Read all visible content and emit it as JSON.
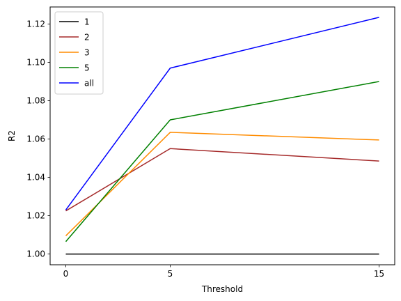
{
  "chart_data": {
    "type": "line",
    "title": "",
    "xlabel": "Threshold",
    "ylabel": "R2",
    "x": [
      0,
      5,
      15
    ],
    "x_ticks": [
      0,
      5,
      15
    ],
    "x_tick_labels": [
      "0",
      "5",
      "15"
    ],
    "y_ticks": [
      1.0,
      1.02,
      1.04,
      1.06,
      1.08,
      1.1,
      1.12
    ],
    "y_tick_labels": [
      "1.00",
      "1.02",
      "1.04",
      "1.06",
      "1.08",
      "1.10",
      "1.12"
    ],
    "xlim": [
      -0.75,
      15.75
    ],
    "ylim": [
      0.9944,
      1.1289
    ],
    "grid": false,
    "legend_position": "top-left",
    "series": [
      {
        "name": "1",
        "color": "#000000",
        "values": [
          1.0,
          1.0,
          1.0
        ]
      },
      {
        "name": "2",
        "color": "#a52a2a",
        "values": [
          1.0225,
          1.055,
          1.0485
        ]
      },
      {
        "name": "3",
        "color": "#ff8c00",
        "values": [
          1.0095,
          1.0635,
          1.0595
        ]
      },
      {
        "name": "5",
        "color": "#008000",
        "values": [
          1.0065,
          1.07,
          1.09
        ]
      },
      {
        "name": "all",
        "color": "#0000ff",
        "values": [
          1.023,
          1.097,
          1.1235
        ]
      }
    ]
  }
}
